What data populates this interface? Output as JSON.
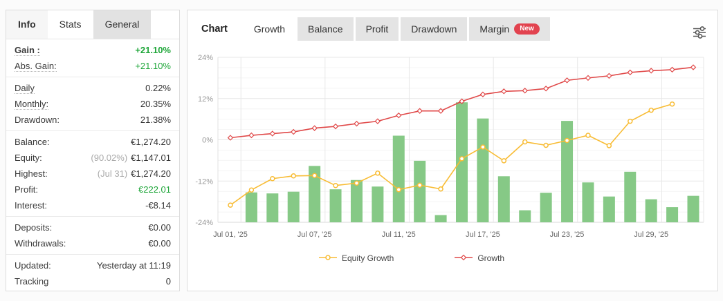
{
  "left_panel": {
    "tabs": [
      {
        "label": "Info",
        "active": true
      },
      {
        "label": "Stats",
        "active": false
      },
      {
        "label": "General",
        "active": false
      }
    ],
    "groups": [
      {
        "rows": [
          {
            "label": "Gain :",
            "value": "+21.10%"
          },
          {
            "label": "Abs. Gain:",
            "value": "+21.10%"
          }
        ]
      },
      {
        "rows": [
          {
            "label": "Daily",
            "value": "0.22%"
          },
          {
            "label": "Monthly:",
            "value": "20.35%"
          },
          {
            "label": "Drawdown:",
            "value": "21.38%"
          }
        ]
      },
      {
        "rows": [
          {
            "label": "Balance:",
            "value": "€1,274.20"
          },
          {
            "label": "Equity:",
            "prefix": "(90.02%)",
            "value": "€1,147.01"
          },
          {
            "label": "Highest:",
            "prefix": "(Jul 31)",
            "value": "€1,274.20"
          },
          {
            "label": "Profit:",
            "value": "€222.01"
          },
          {
            "label": "Interest:",
            "value": "-€8.14"
          }
        ]
      },
      {
        "rows": [
          {
            "label": "Deposits:",
            "value": "€0.00"
          },
          {
            "label": "Withdrawals:",
            "value": "€0.00"
          }
        ]
      },
      {
        "rows": [
          {
            "label": "Updated:",
            "value": "Yesterday at 11:19"
          },
          {
            "label": "Tracking",
            "value": "0"
          }
        ]
      }
    ]
  },
  "right_panel": {
    "tabs": [
      {
        "label": "Chart",
        "style": "title"
      },
      {
        "label": "Growth",
        "active": true
      },
      {
        "label": "Balance"
      },
      {
        "label": "Profit"
      },
      {
        "label": "Drawdown"
      },
      {
        "label": "Margin",
        "badge": "New"
      }
    ],
    "controls": {
      "icon": "filter-sliders-icon"
    }
  },
  "chart_data": {
    "type": "line+bar",
    "x": [
      "Jul 01",
      "Jul 02",
      "Jul 03",
      "Jul 04",
      "Jul 07",
      "Jul 08",
      "Jul 09",
      "Jul 10",
      "Jul 11",
      "Jul 14",
      "Jul 15",
      "Jul 16",
      "Jul 17",
      "Jul 18",
      "Jul 21",
      "Jul 22",
      "Jul 23",
      "Jul 24",
      "Jul 25",
      "Jul 28",
      "Jul 29",
      "Jul 30",
      "Jul 31"
    ],
    "x_tick_indices": [
      0,
      4,
      8,
      12,
      16,
      20
    ],
    "x_tick_labels": [
      "Jul 01, '25",
      "Jul 07, '25",
      "Jul 11, '25",
      "Jul 17, '25",
      "Jul 23, '25",
      "Jul 29, '25"
    ],
    "ylim": [
      -24,
      24
    ],
    "y_tick_values": [
      24,
      12,
      0,
      -12,
      -24
    ],
    "y_tick_labels": [
      "24%",
      "12%",
      "0%",
      "-12%",
      "-24%"
    ],
    "y_minor_step": 3,
    "grid": true,
    "legend_position": "bottom",
    "series": [
      {
        "name": "bars",
        "type": "bar",
        "color": "#86c986",
        "in_legend": false,
        "values": [
          null,
          -15.3,
          -15.6,
          -15.1,
          -7.6,
          -14.4,
          -11.7,
          -13.6,
          1.2,
          -6.1,
          -21.9,
          10.9,
          6.2,
          -10.6,
          -20.5,
          -15.4,
          5.5,
          -12.4,
          -16.5,
          -9.3,
          -17.3,
          -19.6,
          -16.3
        ]
      },
      {
        "name": "Equity Growth",
        "type": "line",
        "marker": "circle",
        "color": "#f8bc34",
        "in_legend": true,
        "values": [
          -19.0,
          -14.6,
          -11.3,
          -10.5,
          -10.4,
          -13.3,
          -12.6,
          -9.7,
          -14.5,
          -13.2,
          -14.3,
          -5.5,
          -2.1,
          -6.1,
          -0.6,
          -1.6,
          -0.2,
          1.3,
          -1.7,
          5.4,
          8.6,
          10.4,
          null
        ]
      },
      {
        "name": "Growth",
        "type": "line",
        "marker": "diamond",
        "color": "#e04848",
        "in_legend": true,
        "values": [
          0.6,
          1.3,
          1.8,
          2.3,
          3.4,
          3.9,
          4.7,
          5.4,
          7.1,
          8.4,
          8.4,
          11.2,
          13.2,
          14.1,
          14.3,
          14.9,
          17.3,
          18.0,
          18.6,
          19.6,
          20.1,
          20.4,
          21.1
        ]
      }
    ],
    "legend": [
      {
        "label": "Equity Growth",
        "color": "#f8bc34",
        "marker": "circle"
      },
      {
        "label": "Growth",
        "color": "#e04848",
        "marker": "diamond"
      }
    ]
  },
  "colors": {
    "gain_green": "#1ea639",
    "badge_red": "#e2434f",
    "bar_green": "#86c986",
    "equity_yellow": "#f8bc34",
    "growth_red": "#e04848"
  }
}
